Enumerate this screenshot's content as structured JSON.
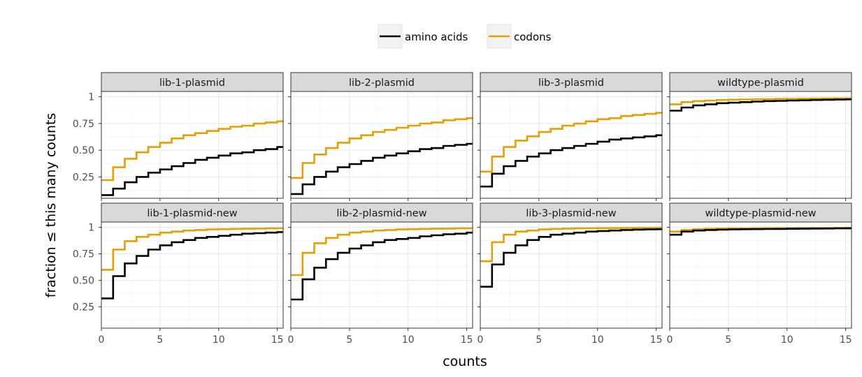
{
  "chart_data": {
    "type": "line",
    "step": true,
    "facet_layout": "2x4",
    "xlabel": "counts",
    "ylabel": "fraction ≤ this many counts",
    "xlim": [
      0,
      15.5
    ],
    "xticks": [
      0,
      5,
      10,
      15
    ],
    "ylim": [
      0.05,
      1.05
    ],
    "yticks": [
      0.25,
      0.5,
      0.75,
      1.0
    ],
    "ytick_labels": [
      "0.25",
      "0.50",
      "0.75",
      "1"
    ],
    "grid": true,
    "legend": {
      "placement": "top-center",
      "entries": [
        {
          "label": "amino acids",
          "color": "#000000"
        },
        {
          "label": "codons",
          "color": "#e69f00"
        }
      ]
    },
    "x": [
      0,
      1,
      2,
      3,
      4,
      5,
      6,
      7,
      8,
      9,
      10,
      11,
      12,
      13,
      14,
      15,
      16
    ],
    "panels": [
      {
        "title": "lib-1-plasmid",
        "series": [
          {
            "name": "amino acids",
            "values": [
              0.08,
              0.14,
              0.2,
              0.25,
              0.29,
              0.32,
              0.35,
              0.38,
              0.41,
              0.43,
              0.45,
              0.47,
              0.48,
              0.5,
              0.51,
              0.53,
              0.54
            ]
          },
          {
            "name": "codons",
            "values": [
              0.22,
              0.34,
              0.42,
              0.48,
              0.53,
              0.57,
              0.61,
              0.64,
              0.66,
              0.68,
              0.7,
              0.72,
              0.73,
              0.75,
              0.76,
              0.77,
              0.78
            ]
          }
        ]
      },
      {
        "title": "lib-2-plasmid",
        "series": [
          {
            "name": "amino acids",
            "values": [
              0.09,
              0.18,
              0.25,
              0.3,
              0.34,
              0.37,
              0.4,
              0.43,
              0.45,
              0.47,
              0.49,
              0.51,
              0.52,
              0.54,
              0.55,
              0.56,
              0.57
            ]
          },
          {
            "name": "codons",
            "values": [
              0.24,
              0.38,
              0.46,
              0.52,
              0.57,
              0.61,
              0.64,
              0.67,
              0.69,
              0.71,
              0.73,
              0.75,
              0.76,
              0.78,
              0.79,
              0.8,
              0.81
            ]
          }
        ]
      },
      {
        "title": "lib-3-plasmid",
        "series": [
          {
            "name": "amino acids",
            "values": [
              0.16,
              0.28,
              0.35,
              0.4,
              0.44,
              0.47,
              0.5,
              0.52,
              0.54,
              0.56,
              0.58,
              0.6,
              0.61,
              0.62,
              0.63,
              0.64,
              0.65
            ]
          },
          {
            "name": "codons",
            "values": [
              0.3,
              0.44,
              0.53,
              0.59,
              0.63,
              0.67,
              0.7,
              0.73,
              0.75,
              0.77,
              0.79,
              0.8,
              0.82,
              0.83,
              0.84,
              0.85,
              0.86
            ]
          }
        ]
      },
      {
        "title": "wildtype-plasmid",
        "series": [
          {
            "name": "amino acids",
            "values": [
              0.87,
              0.9,
              0.92,
              0.93,
              0.94,
              0.945,
              0.95,
              0.955,
              0.96,
              0.962,
              0.965,
              0.967,
              0.97,
              0.972,
              0.974,
              0.976,
              0.978
            ]
          },
          {
            "name": "codons",
            "values": [
              0.93,
              0.95,
              0.96,
              0.965,
              0.97,
              0.973,
              0.975,
              0.977,
              0.978,
              0.98,
              0.981,
              0.982,
              0.983,
              0.984,
              0.985,
              0.986,
              0.987
            ]
          }
        ]
      },
      {
        "title": "lib-1-plasmid-new",
        "series": [
          {
            "name": "amino acids",
            "values": [
              0.33,
              0.54,
              0.66,
              0.73,
              0.79,
              0.83,
              0.86,
              0.88,
              0.9,
              0.91,
              0.92,
              0.93,
              0.94,
              0.945,
              0.95,
              0.955,
              0.96
            ]
          },
          {
            "name": "codons",
            "values": [
              0.6,
              0.79,
              0.87,
              0.91,
              0.93,
              0.95,
              0.96,
              0.97,
              0.975,
              0.98,
              0.982,
              0.985,
              0.987,
              0.988,
              0.99,
              0.991,
              0.992
            ]
          }
        ]
      },
      {
        "title": "lib-2-plasmid-new",
        "series": [
          {
            "name": "amino acids",
            "values": [
              0.32,
              0.51,
              0.62,
              0.7,
              0.76,
              0.8,
              0.83,
              0.86,
              0.88,
              0.89,
              0.9,
              0.915,
              0.925,
              0.935,
              0.94,
              0.95,
              0.955
            ]
          },
          {
            "name": "codons",
            "values": [
              0.55,
              0.76,
              0.85,
              0.9,
              0.93,
              0.95,
              0.96,
              0.97,
              0.975,
              0.98,
              0.982,
              0.985,
              0.987,
              0.988,
              0.99,
              0.991,
              0.992
            ]
          }
        ]
      },
      {
        "title": "lib-3-plasmid-new",
        "series": [
          {
            "name": "amino acids",
            "values": [
              0.44,
              0.65,
              0.76,
              0.83,
              0.88,
              0.91,
              0.93,
              0.94,
              0.95,
              0.96,
              0.965,
              0.97,
              0.975,
              0.978,
              0.98,
              0.982,
              0.984
            ]
          },
          {
            "name": "codons",
            "values": [
              0.68,
              0.86,
              0.93,
              0.96,
              0.97,
              0.98,
              0.985,
              0.988,
              0.99,
              0.991,
              0.992,
              0.993,
              0.994,
              0.995,
              0.995,
              0.996,
              0.996
            ]
          }
        ]
      },
      {
        "title": "wildtype-plasmid-new",
        "series": [
          {
            "name": "amino acids",
            "values": [
              0.93,
              0.96,
              0.97,
              0.975,
              0.978,
              0.98,
              0.982,
              0.983,
              0.984,
              0.985,
              0.986,
              0.987,
              0.988,
              0.989,
              0.99,
              0.99,
              0.99
            ]
          },
          {
            "name": "codons",
            "values": [
              0.96,
              0.975,
              0.982,
              0.986,
              0.988,
              0.99,
              0.991,
              0.992,
              0.993,
              0.993,
              0.994,
              0.994,
              0.995,
              0.995,
              0.995,
              0.996,
              0.996
            ]
          }
        ]
      }
    ]
  }
}
